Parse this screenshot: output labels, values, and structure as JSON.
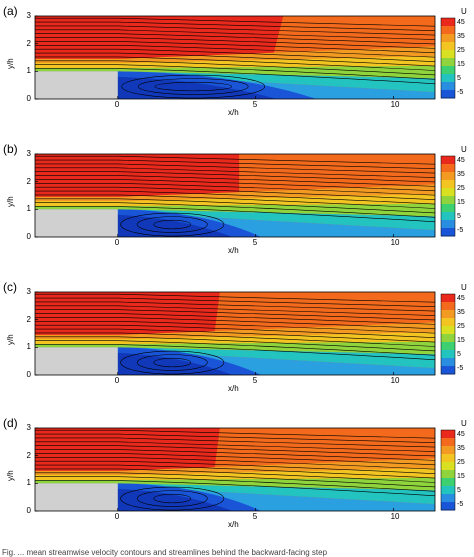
{
  "panels": [
    {
      "label": "(a)",
      "rotor_end_x": 6.0,
      "rotor_bot_x": 5.6
    },
    {
      "label": "(b)",
      "rotor_end_x": 4.4,
      "rotor_bot_x": 4.4
    },
    {
      "label": "(c)",
      "rotor_end_x": 3.7,
      "rotor_bot_x": 3.5
    },
    {
      "label": "(d)",
      "rotor_end_x": 3.7,
      "rotor_bot_x": 3.5
    }
  ],
  "axes": {
    "ylabel": "y/h",
    "xlabel": "x/h",
    "yticks": [
      "0",
      "1",
      "2",
      "3"
    ],
    "xticks": [
      "0",
      "5",
      "10"
    ]
  },
  "colorbar": {
    "title": "U",
    "ticks": [
      "45",
      "35",
      "25",
      "15",
      "5",
      "-5"
    ]
  },
  "colors": {
    "high": "#e8291c",
    "upper": "#f36a1c",
    "mid": "#f3c522",
    "green": "#8fd43c",
    "cyan": "#23c3c0",
    "blue": "#1a55d8",
    "step": "#d0d0d0"
  },
  "caption": "Fig. ... mean streamwise velocity contours and streamlines behind the backward-facing step"
}
